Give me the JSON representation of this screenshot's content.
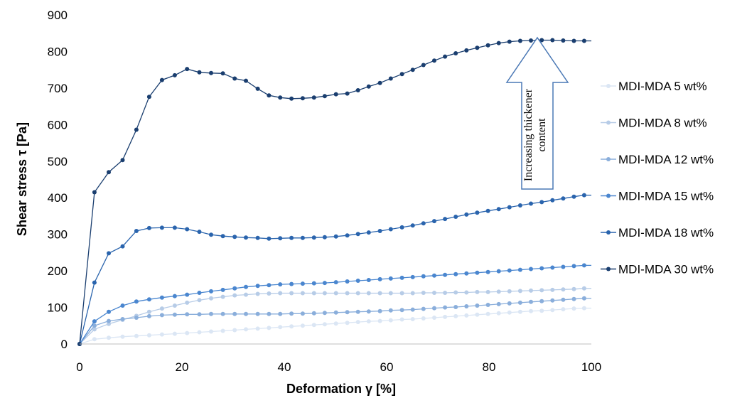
{
  "chart_data": {
    "type": "line",
    "xlabel": "Deformation γ [%]",
    "ylabel": "Shear stress τ [Pa]",
    "xlim": [
      0,
      100
    ],
    "ylim": [
      0,
      900
    ],
    "xticks": [
      0,
      20,
      40,
      60,
      80,
      100
    ],
    "yticks": [
      0,
      100,
      200,
      300,
      400,
      500,
      600,
      700,
      800,
      900
    ],
    "grid": false,
    "legend_position": "right",
    "annotation": {
      "text_line1": "Increasing thickener",
      "text_line2": "content",
      "arrow_direction": "up",
      "arrow_color": "#4a78b5"
    },
    "series": [
      {
        "name": "MDI-MDA 5 wt%",
        "color": "#dbe6f4",
        "x": [
          0,
          2.9,
          5.7,
          8.4,
          11.1,
          13.6,
          16.1,
          18.6,
          21,
          23.4,
          25.7,
          28,
          30.3,
          32.5,
          34.8,
          37,
          39.2,
          41.4,
          43.6,
          45.8,
          47.9,
          50.1,
          52.3,
          54.4,
          56.5,
          58.7,
          60.8,
          63,
          65.1,
          67.2,
          69.3,
          71.4,
          73.5,
          75.6,
          77.7,
          79.8,
          81.9,
          84,
          86.1,
          88.2,
          90.3,
          92.4,
          94.5,
          96.6,
          98.6
        ],
        "y": [
          0,
          13,
          17,
          20,
          22,
          24,
          26,
          28,
          30,
          32,
          34,
          36,
          38,
          40,
          42,
          44,
          46,
          48,
          50,
          52,
          54,
          56,
          58,
          60,
          62,
          63,
          65,
          67,
          68,
          70,
          72,
          74,
          76,
          78,
          80,
          82,
          84,
          86,
          88,
          90,
          91,
          93,
          95,
          97,
          98
        ]
      },
      {
        "name": "MDI-MDA 8 wt%",
        "color": "#b7cce7",
        "x": [
          0,
          2.9,
          5.7,
          8.4,
          11.1,
          13.6,
          16.1,
          18.6,
          21,
          23.4,
          25.7,
          28,
          30.3,
          32.5,
          34.8,
          37,
          39.2,
          41.4,
          43.6,
          45.8,
          47.9,
          50.1,
          52.3,
          54.4,
          56.5,
          58.7,
          60.8,
          63,
          65.1,
          67.2,
          69.3,
          71.4,
          73.5,
          75.6,
          77.7,
          79.8,
          81.9,
          84,
          86.1,
          88.2,
          90.3,
          92.4,
          94.5,
          96.6,
          98.6
        ],
        "y": [
          0,
          40,
          55,
          66,
          77,
          88,
          97,
          105,
          113,
          120,
          125,
          129,
          133,
          135,
          137,
          138,
          139,
          139,
          139,
          139,
          139,
          139,
          139,
          139,
          139,
          139,
          139,
          139,
          139,
          140,
          140,
          140,
          141,
          141,
          142,
          142,
          143,
          144,
          145,
          146,
          147,
          148,
          149,
          150,
          152
        ]
      },
      {
        "name": "MDI-MDA 12 wt%",
        "color": "#8aaedb",
        "x": [
          0,
          2.9,
          5.7,
          8.4,
          11.1,
          13.6,
          16.1,
          18.6,
          21,
          23.4,
          25.7,
          28,
          30.3,
          32.5,
          34.8,
          37,
          39.2,
          41.4,
          43.6,
          45.8,
          47.9,
          50.1,
          52.3,
          54.4,
          56.5,
          58.7,
          60.8,
          63,
          65.1,
          67.2,
          69.3,
          71.4,
          73.5,
          75.6,
          77.7,
          79.8,
          81.9,
          84,
          86.1,
          88.2,
          90.3,
          92.4,
          94.5,
          96.6,
          98.6
        ],
        "y": [
          0,
          50,
          63,
          68,
          72,
          76,
          79,
          80,
          81,
          81,
          82,
          82,
          82,
          82,
          82,
          82,
          82,
          83,
          83,
          84,
          85,
          86,
          87,
          88,
          89,
          90,
          92,
          93,
          94,
          96,
          98,
          100,
          101,
          103,
          105,
          107,
          109,
          111,
          113,
          115,
          117,
          119,
          121,
          123,
          125
        ]
      },
      {
        "name": "MDI-MDA 15 wt%",
        "color": "#4a86cf",
        "x": [
          0,
          2.9,
          5.7,
          8.4,
          11.1,
          13.6,
          16.1,
          18.6,
          21,
          23.4,
          25.7,
          28,
          30.3,
          32.5,
          34.8,
          37,
          39.2,
          41.4,
          43.6,
          45.8,
          47.9,
          50.1,
          52.3,
          54.4,
          56.5,
          58.7,
          60.8,
          63,
          65.1,
          67.2,
          69.3,
          71.4,
          73.5,
          75.6,
          77.7,
          79.8,
          81.9,
          84,
          86.1,
          88.2,
          90.3,
          92.4,
          94.5,
          96.6,
          98.6
        ],
        "y": [
          0,
          62,
          88,
          105,
          116,
          122,
          127,
          131,
          135,
          140,
          144,
          148,
          152,
          156,
          159,
          161,
          163,
          164,
          165,
          166,
          167,
          169,
          171,
          173,
          175,
          177,
          179,
          181,
          183,
          185,
          187,
          189,
          191,
          193,
          195,
          197,
          199,
          201,
          203,
          205,
          207,
          209,
          211,
          213,
          215
        ]
      },
      {
        "name": "MDI-MDA 18 wt%",
        "color": "#2a64ad",
        "x": [
          0,
          2.9,
          5.7,
          8.4,
          11.1,
          13.6,
          16.1,
          18.6,
          21,
          23.4,
          25.7,
          28,
          30.3,
          32.5,
          34.8,
          37,
          39.2,
          41.4,
          43.6,
          45.8,
          47.9,
          50.1,
          52.3,
          54.4,
          56.5,
          58.7,
          60.8,
          63,
          65.1,
          67.2,
          69.3,
          71.4,
          73.5,
          75.6,
          77.7,
          79.8,
          81.9,
          84,
          86.1,
          88.2,
          90.3,
          92.4,
          94.5,
          96.6,
          98.6
        ],
        "y": [
          0,
          168,
          248,
          267,
          309,
          317,
          318,
          318,
          314,
          307,
          299,
          295,
          293,
          291,
          290,
          288,
          289,
          290,
          290,
          291,
          292,
          294,
          297,
          301,
          305,
          309,
          314,
          319,
          324,
          330,
          336,
          342,
          348,
          354,
          359,
          364,
          369,
          374,
          379,
          384,
          388,
          393,
          398,
          403,
          407
        ]
      },
      {
        "name": "MDI-MDA 30 wt%",
        "color": "#1a3e6f",
        "x": [
          0,
          2.9,
          5.7,
          8.4,
          11.1,
          13.6,
          16.1,
          18.6,
          21,
          23.4,
          25.7,
          28,
          30.3,
          32.5,
          34.8,
          37,
          39.2,
          41.4,
          43.6,
          45.8,
          47.9,
          50.1,
          52.3,
          54.4,
          56.5,
          58.7,
          60.8,
          63,
          65.1,
          67.2,
          69.3,
          71.4,
          73.5,
          75.6,
          77.7,
          79.8,
          81.9,
          84,
          86.1,
          88.2,
          90.3,
          92.4,
          94.5,
          96.6,
          98.6
        ],
        "y": [
          0,
          415,
          470,
          503,
          586,
          676,
          722,
          735,
          752,
          743,
          741,
          740,
          726,
          720,
          698,
          680,
          674,
          671,
          672,
          674,
          678,
          683,
          685,
          694,
          704,
          714,
          726,
          738,
          750,
          763,
          775,
          786,
          795,
          803,
          810,
          817,
          823,
          827,
          829,
          830,
          831,
          831,
          830,
          829,
          829
        ]
      }
    ]
  }
}
